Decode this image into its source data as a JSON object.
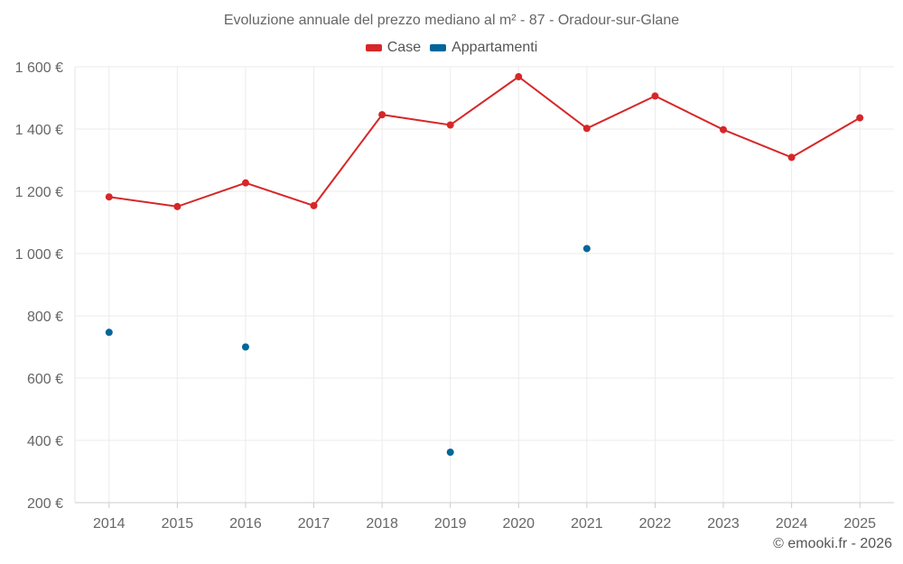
{
  "chart_data": {
    "type": "line",
    "title": "Evoluzione annuale del prezzo mediano al m² - 87 - Oradour-sur-Glane",
    "xlabel": "",
    "ylabel": "",
    "categories": [
      "2014",
      "2015",
      "2016",
      "2017",
      "2018",
      "2019",
      "2020",
      "2021",
      "2022",
      "2023",
      "2024",
      "2025"
    ],
    "ylim": [
      200,
      1600
    ],
    "yticks": [
      200,
      400,
      600,
      800,
      1000,
      1200,
      1400,
      1600
    ],
    "ytick_labels": [
      "200 €",
      "400 €",
      "600 €",
      "800 €",
      "1 000 €",
      "1 200 €",
      "1 400 €",
      "1 600 €"
    ],
    "grid": true,
    "legend_position": "top-center",
    "series": [
      {
        "name": "Case",
        "color": "#d62728",
        "mode": "lines+markers",
        "values": [
          1182,
          1151,
          1227,
          1154,
          1446,
          1413,
          1568,
          1402,
          1506,
          1398,
          1309,
          1436
        ]
      },
      {
        "name": "Appartamenti",
        "color": "#00669a",
        "mode": "markers",
        "values": [
          747,
          null,
          700,
          null,
          null,
          362,
          null,
          1016,
          null,
          null,
          null,
          null
        ]
      }
    ]
  },
  "credit": "© emooki.fr - 2026"
}
